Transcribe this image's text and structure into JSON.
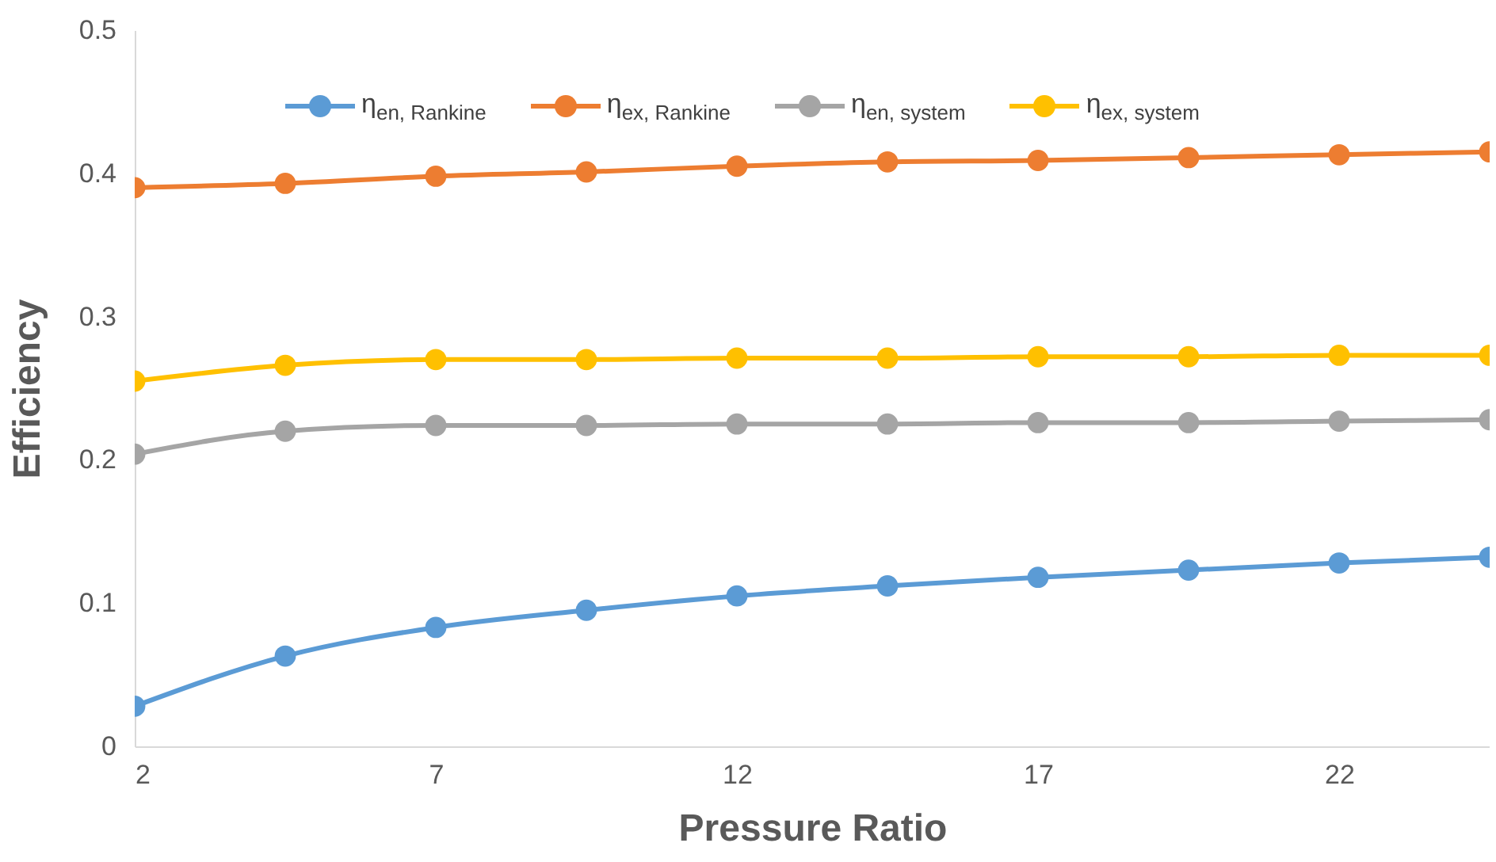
{
  "chart_data": {
    "type": "line",
    "xlabel": "Pressure Ratio",
    "ylabel": "Efficiency",
    "x": [
      2,
      4.5,
      7,
      9.5,
      12,
      14.5,
      17,
      19.5,
      22,
      24.5
    ],
    "xlim": [
      2,
      24.5
    ],
    "xticks": [
      2,
      7,
      12,
      17,
      22
    ],
    "ylim": [
      0,
      0.5
    ],
    "yticks": [
      0,
      0.1,
      0.2,
      0.3,
      0.4,
      0.5
    ],
    "marker": "circle",
    "legend": "top",
    "grid": false,
    "series": [
      {
        "name": "η$_{en, Rankine}$",
        "color": "#5b9bd5",
        "values": [
          0.028,
          0.063,
          0.083,
          0.095,
          0.105,
          0.112,
          0.118,
          0.123,
          0.128,
          0.132
        ]
      },
      {
        "name": "η$_{ex, Rankine}$",
        "color": "#ed7d31",
        "values": [
          0.39,
          0.393,
          0.398,
          0.401,
          0.405,
          0.408,
          0.409,
          0.411,
          0.413,
          0.415
        ]
      },
      {
        "name": "η$_{en, system}$",
        "color": "#a5a5a5",
        "values": [
          0.204,
          0.22,
          0.224,
          0.224,
          0.225,
          0.225,
          0.226,
          0.226,
          0.227,
          0.228
        ]
      },
      {
        "name": "η$_{ex, system}$",
        "color": "#ffc000",
        "values": [
          0.255,
          0.266,
          0.27,
          0.27,
          0.271,
          0.271,
          0.272,
          0.272,
          0.273,
          0.273
        ]
      }
    ]
  }
}
